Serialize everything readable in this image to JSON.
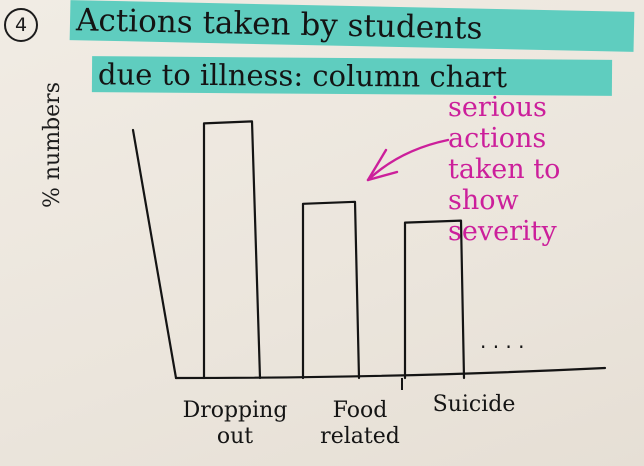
{
  "header": {
    "number": "4",
    "title_line1": "Actions taken by students",
    "title_line2": "due to illness: column chart"
  },
  "annotation": {
    "lines": [
      "serious",
      "actions",
      "taken to",
      "show",
      "severity"
    ],
    "color": "#cc1f9b"
  },
  "chart_data": {
    "type": "bar",
    "title": "Actions taken by students due to illness: column chart",
    "ylabel": "% numbers",
    "categories": [
      "Dropping out",
      "Food related",
      "Suicide"
    ],
    "category_labels": [
      [
        "Dropping",
        "out"
      ],
      [
        "Food",
        "related"
      ],
      [
        "Suicide"
      ]
    ],
    "values": [
      95,
      65,
      58
    ],
    "ylim": [
      0,
      100
    ],
    "grid": false,
    "continuation": ". . . ."
  },
  "colors": {
    "ink": "#141414",
    "highlight": "#5fcdbf",
    "paper": "#ece6dd"
  }
}
